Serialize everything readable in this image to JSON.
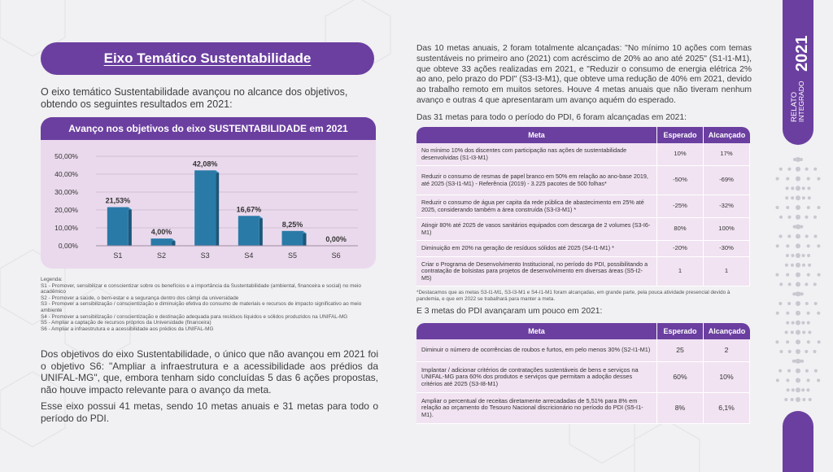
{
  "section_title": "Eixo Temático Sustentabilidade",
  "intro": "O eixo temático Sustentabilidade avançou no alcance dos objetivos, obtendo os seguintes resultados em 2021:",
  "chart_title": "Avanço nos objetivos do eixo SUSTENTABILIDADE em 2021",
  "chart_data": {
    "type": "bar",
    "title": "Avanço nos objetivos do eixo SUSTENTABILIDADE em 2021",
    "categories": [
      "S1",
      "S2",
      "S3",
      "S4",
      "S5",
      "S6"
    ],
    "values": [
      21.53,
      4.0,
      42.08,
      16.67,
      8.25,
      0.0
    ],
    "value_labels": [
      "21,53%",
      "4,00%",
      "42,08%",
      "16,67%",
      "8,25%",
      "0,00%"
    ],
    "yticks": [
      "0,00%",
      "10,00%",
      "20,00%",
      "30,00%",
      "40,00%",
      "50,00%"
    ],
    "ylim": [
      0,
      50
    ],
    "bar_color": "#2a7aa8",
    "xlabel": "",
    "ylabel": "",
    "grid": true
  },
  "legend": {
    "heading": "Legenda:",
    "items": [
      "S1 - Promover, sensibilizar e conscientizar sobre os benefícios e a importância da Sustentabilidade (ambiental, financeira e social) no meio acadêmico",
      "S2 - Promover a saúde, o bem-estar e a segurança dentro dos câmpi da universidade",
      "S3 - Promover a sensibilização / conscientização e diminuição efetiva do consumo de materiais e recursos de impacto significativo ao meio ambiente",
      "S4 - Promover a sensibilização / conscientização e destinação adequada para resíduos líquidos e sólidos produzidos na UNIFAL-MG",
      "S5 - Ampliar a captação de recursos próprios da Universidade (financeira)",
      "S6 - Ampliar a infraestrutura e a acessibilidade aos prédios da UNIFAL-MG"
    ]
  },
  "para1": "Dos objetivos do eixo Sustentabilidade, o único que não avançou  em 2021 foi o objetivo S6: \"Ampliar a infraestrutura e a acessibilidade aos prédios da UNIFAL-MG\", que, embora tenham sido concluídas 5 das 6 ações propostas, não houve impacto relevante para o avanço da meta.",
  "para2": "Esse eixo possui 41 metas, sendo 10 metas anuais e 31 metas para todo o período do PDI.",
  "right_para1": "Das 10 metas anuais, 2 foram totalmente alcançadas: \"No mínimo 10 ações com temas sustentáveis no primeiro ano (2021) com acréscimo de 20% ao ano até 2025\" (S1-I1-M1), que obteve 33 ações realizadas em 2021, e \"Reduzir o consumo de energia elétrica 2% ao ano, pelo prazo do PDI\" (S3-I3-M1), que obteve uma redução de 40% em 2021, devido ao trabalho remoto em muitos setores. Houve 4 metas anuais que não tiveram nenhum avanço e outras 4 que apresentaram um avanço aquém do esperado.",
  "right_para2": "Das 31 metas para todo o período do PDI, 6 foram alcançadas em 2021:",
  "table_headers": {
    "meta": "Meta",
    "esperado": "Esperado",
    "alcancado": "Alcançado"
  },
  "table1": [
    {
      "meta": "No mínimo 10% dos discentes com participação nas ações de sustentabilidade desenvolvidas (S1-I3-M1)",
      "esperado": "10%",
      "alcancado": "17%"
    },
    {
      "meta": "Reduzir o consumo de resmas de papel branco em 50% em relação ao ano-base 2019, até 2025 (S3-I1-M1) - Referência (2019) - 3.225 pacotes de 500 folhas*",
      "esperado": "-50%",
      "alcancado": "-69%"
    },
    {
      "meta": "Reduzir o consumo de água per capita da rede pública de abastecimento em 25% até 2025, considerando também a área construída (S3-I3-M1) *",
      "esperado": "-25%",
      "alcancado": "-32%"
    },
    {
      "meta": "Atingir 80% até 2025 de vasos sanitários equipados com descarga de 2 volumes (S3-I6-M1)",
      "esperado": "80%",
      "alcancado": "100%"
    },
    {
      "meta": "Diminuição em 20% na geração de resíduos sólidos até 2025 (S4-I1-M1) *",
      "esperado": "-20%",
      "alcancado": "-30%"
    },
    {
      "meta": "Criar o Programa de Desenvolvimento Institucional, no período do PDI, possibilitando a contratação de bolsistas para projetos de desenvolvimento em diversas áreas (S5-I2-M5)",
      "esperado": "1",
      "alcancado": "1"
    }
  ],
  "footnote": "*Destacamos que as metas S3-I1-M1, S3-I3-M1 e S4-I1-M1 foram alcançadas, em grande parte, pela pouca atividade presencial devido à pandemia, e que em 2022 se trabalhará para manter a meta.",
  "right_para3": "E 3 metas do PDI avançaram um pouco em 2021:",
  "table2": [
    {
      "meta": "Diminuir o número de ocorrências de roubos e furtos, em pelo menos 30% (S2-I1-M1)",
      "esperado": "25",
      "alcancado": "2"
    },
    {
      "meta": "Implantar / adicionar critérios de contratações sustentáveis de bens e serviços na UNIFAL-MG para 60% dos produtos e serviços que permitam a adoção desses critérios até 2025  (S3-I8-M1)",
      "esperado": "60%",
      "alcancado": "10%"
    },
    {
      "meta": "Ampliar o percentual de receitas diretamente arrecadadas de 5,51% para 8% em relação ao orçamento do Tesouro Nacional discricionário no período do PDI (S5-I1-M1).",
      "esperado": "8%",
      "alcancado": "6,1%"
    }
  ],
  "side_label": {
    "line1": "RELATO",
    "line2": "INTEGRADO",
    "year": "2021"
  },
  "colors": {
    "purple": "#6b3fa0",
    "pink_bg": "#ead9ec",
    "bar": "#2a7aa8"
  }
}
